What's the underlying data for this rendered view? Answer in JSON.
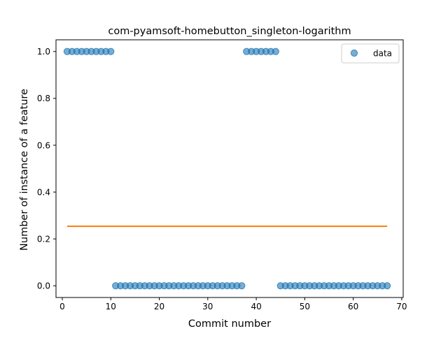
{
  "chart_data": {
    "type": "scatter",
    "title": "com-pyamsoft-homebutton_singleton-logarithm",
    "xlabel": "Commit number",
    "ylabel": "Number of instance of a feature",
    "xlim": [
      -1.3,
      70.3
    ],
    "ylim": [
      -0.05,
      1.05
    ],
    "xticks": [
      0,
      10,
      20,
      30,
      40,
      50,
      60,
      70
    ],
    "yticks": [
      0.0,
      0.2,
      0.4,
      0.6,
      0.8,
      1.0
    ],
    "xtick_labels": [
      "0",
      "10",
      "20",
      "30",
      "40",
      "50",
      "60",
      "70"
    ],
    "ytick_labels": [
      "0.0",
      "0.2",
      "0.4",
      "0.6",
      "0.8",
      "1.0"
    ],
    "legend": {
      "position": "top-right",
      "entries": [
        "data"
      ]
    },
    "grid": false,
    "series": [
      {
        "name": "data",
        "kind": "scatter",
        "color": "#1f77b4",
        "x": [
          1,
          2,
          3,
          4,
          5,
          6,
          7,
          8,
          9,
          10,
          11,
          12,
          13,
          14,
          15,
          16,
          17,
          18,
          19,
          20,
          21,
          22,
          23,
          24,
          25,
          26,
          27,
          28,
          29,
          30,
          31,
          32,
          33,
          34,
          35,
          36,
          37,
          38,
          39,
          40,
          41,
          42,
          43,
          44,
          45,
          46,
          47,
          48,
          49,
          50,
          51,
          52,
          53,
          54,
          55,
          56,
          57,
          58,
          59,
          60,
          61,
          62,
          63,
          64,
          65,
          66,
          67
        ],
        "y": [
          1,
          1,
          1,
          1,
          1,
          1,
          1,
          1,
          1,
          1,
          0,
          0,
          0,
          0,
          0,
          0,
          0,
          0,
          0,
          0,
          0,
          0,
          0,
          0,
          0,
          0,
          0,
          0,
          0,
          0,
          0,
          0,
          0,
          0,
          0,
          0,
          0,
          1,
          1,
          1,
          1,
          1,
          1,
          1,
          0,
          0,
          0,
          0,
          0,
          0,
          0,
          0,
          0,
          0,
          0,
          0,
          0,
          0,
          0,
          0,
          0,
          0,
          0,
          0,
          0,
          0,
          0
        ]
      },
      {
        "kind": "line",
        "color": "#ff7f0e",
        "x": [
          1,
          67
        ],
        "y": [
          0.254,
          0.254
        ]
      }
    ]
  }
}
